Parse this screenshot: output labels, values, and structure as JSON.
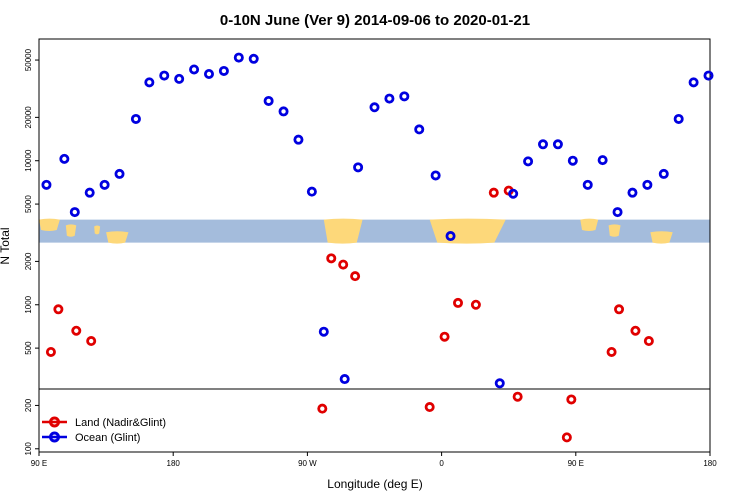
{
  "chart_data": {
    "type": "scatter",
    "title": "0-10N June (Ver 9)   2014-09-06 to 2020-01-21",
    "xlabel": "Longitude (deg E)",
    "ylabel": "N Total",
    "x_ticks": [
      {
        "value": 90,
        "label": "90 E"
      },
      {
        "value": 180,
        "label": "180"
      },
      {
        "value": 270,
        "label": "90 W"
      },
      {
        "value": 360,
        "label": "0"
      },
      {
        "value": 450,
        "label": "90 E"
      },
      {
        "value": 540,
        "label": "180"
      }
    ],
    "xlim": [
      90,
      540
    ],
    "y_scale": "log",
    "ylim": [
      95,
      70000
    ],
    "y_ticks": [
      100,
      200,
      500,
      1000,
      2000,
      5000,
      10000,
      20000,
      50000
    ],
    "reference_line_y": 260,
    "map_band_y": [
      2700,
      3900
    ],
    "colors": {
      "land": "#e00000",
      "ocean": "#0000e0",
      "ocean_map": "#a4bcdc",
      "land_map": "#fdd87a"
    },
    "legend": {
      "position": "bottom-left",
      "entries": [
        "Land (Nadir&Glint)",
        "Ocean (Glint)"
      ]
    },
    "series": [
      {
        "name": "Land (Nadir&Glint)",
        "color": "#e00000",
        "points": [
          [
            98,
            470
          ],
          [
            103,
            930
          ],
          [
            115,
            660
          ],
          [
            125,
            560
          ],
          [
            280,
            190
          ],
          [
            286,
            2100
          ],
          [
            294,
            1900
          ],
          [
            302,
            1580
          ],
          [
            352,
            195
          ],
          [
            362,
            600
          ],
          [
            371,
            1030
          ],
          [
            383,
            1000
          ],
          [
            395,
            6000
          ],
          [
            405,
            6200
          ],
          [
            411,
            230
          ],
          [
            444,
            120
          ],
          [
            447,
            220
          ],
          [
            474,
            470
          ],
          [
            479,
            930
          ],
          [
            490,
            660
          ],
          [
            499,
            560
          ]
        ]
      },
      {
        "name": "Ocean (Glint)",
        "color": "#0000e0",
        "points": [
          [
            95,
            6800
          ],
          [
            107,
            10300
          ],
          [
            114,
            4400
          ],
          [
            124,
            6000
          ],
          [
            134,
            6800
          ],
          [
            144,
            8100
          ],
          [
            155,
            19500
          ],
          [
            164,
            35000
          ],
          [
            174,
            39000
          ],
          [
            184,
            37000
          ],
          [
            194,
            43000
          ],
          [
            204,
            40000
          ],
          [
            214,
            42000
          ],
          [
            224,
            52000
          ],
          [
            234,
            51000
          ],
          [
            244,
            26000
          ],
          [
            254,
            22000
          ],
          [
            264,
            14000
          ],
          [
            273,
            6100
          ],
          [
            281,
            650
          ],
          [
            295,
            305
          ],
          [
            304,
            9000
          ],
          [
            315,
            23500
          ],
          [
            325,
            27000
          ],
          [
            335,
            28000
          ],
          [
            345,
            16500
          ],
          [
            356,
            7900
          ],
          [
            366,
            3000
          ],
          [
            399,
            285
          ],
          [
            408,
            5900
          ],
          [
            418,
            9900
          ],
          [
            428,
            13000
          ],
          [
            438,
            13000
          ],
          [
            448,
            10000
          ],
          [
            458,
            6800
          ],
          [
            468,
            10100
          ],
          [
            478,
            4400
          ],
          [
            488,
            6000
          ],
          [
            498,
            6800
          ],
          [
            509,
            8100
          ],
          [
            519,
            19500
          ],
          [
            529,
            35000
          ],
          [
            539,
            39000
          ]
        ]
      }
    ]
  }
}
